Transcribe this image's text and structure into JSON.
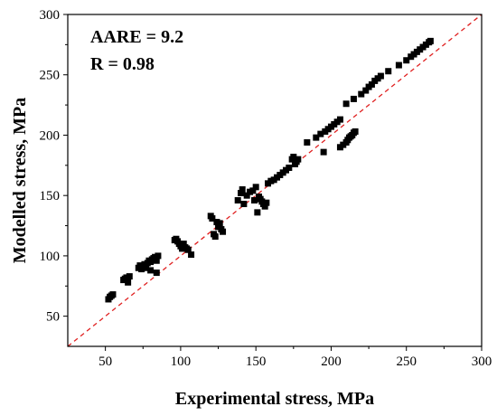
{
  "chart_data": {
    "type": "scatter",
    "xlabel": "Experimental stress, MPa",
    "ylabel": "Modelled  stress, MPa",
    "xlim": [
      25,
      300
    ],
    "ylim": [
      25,
      300
    ],
    "xticks": [
      50,
      100,
      150,
      200,
      250,
      300
    ],
    "yticks": [
      50,
      100,
      150,
      200,
      250,
      300
    ],
    "grid": false,
    "annotations": [
      "AARE = 9.2",
      "R = 0.98"
    ],
    "reference_line": {
      "style": "dashed",
      "color": "#e02020",
      "from": [
        25,
        25
      ],
      "to": [
        300,
        300
      ]
    },
    "marker": {
      "shape": "square",
      "color": "#000000"
    },
    "points": [
      [
        52,
        64
      ],
      [
        53,
        66
      ],
      [
        54,
        67
      ],
      [
        55,
        68
      ],
      [
        62,
        80
      ],
      [
        63,
        81
      ],
      [
        64,
        82
      ],
      [
        65,
        78
      ],
      [
        66,
        83
      ],
      [
        72,
        90
      ],
      [
        73,
        92
      ],
      [
        74,
        89
      ],
      [
        75,
        91
      ],
      [
        76,
        93
      ],
      [
        77,
        90
      ],
      [
        78,
        94
      ],
      [
        79,
        96
      ],
      [
        80,
        95
      ],
      [
        80,
        88
      ],
      [
        81,
        97
      ],
      [
        82,
        98
      ],
      [
        83,
        99
      ],
      [
        84,
        96
      ],
      [
        84,
        86
      ],
      [
        85,
        100
      ],
      [
        96,
        113
      ],
      [
        97,
        114
      ],
      [
        98,
        112
      ],
      [
        99,
        110
      ],
      [
        100,
        108
      ],
      [
        101,
        106
      ],
      [
        102,
        110
      ],
      [
        103,
        107
      ],
      [
        104,
        106
      ],
      [
        105,
        105
      ],
      [
        107,
        101
      ],
      [
        120,
        133
      ],
      [
        121,
        131
      ],
      [
        122,
        118
      ],
      [
        123,
        116
      ],
      [
        124,
        128
      ],
      [
        125,
        124
      ],
      [
        126,
        127
      ],
      [
        127,
        122
      ],
      [
        128,
        120
      ],
      [
        138,
        146
      ],
      [
        140,
        152
      ],
      [
        141,
        155
      ],
      [
        142,
        143
      ],
      [
        144,
        150
      ],
      [
        146,
        153
      ],
      [
        148,
        154
      ],
      [
        149,
        146
      ],
      [
        150,
        157
      ],
      [
        151,
        136
      ],
      [
        152,
        149
      ],
      [
        153,
        147
      ],
      [
        154,
        145
      ],
      [
        155,
        143
      ],
      [
        156,
        141
      ],
      [
        157,
        144
      ],
      [
        158,
        160
      ],
      [
        160,
        162
      ],
      [
        162,
        163
      ],
      [
        164,
        165
      ],
      [
        166,
        167
      ],
      [
        168,
        169
      ],
      [
        170,
        171
      ],
      [
        172,
        173
      ],
      [
        174,
        180
      ],
      [
        175,
        182
      ],
      [
        176,
        176
      ],
      [
        177,
        178
      ],
      [
        178,
        180
      ],
      [
        184,
        194
      ],
      [
        190,
        198
      ],
      [
        193,
        201
      ],
      [
        195,
        186
      ],
      [
        196,
        203
      ],
      [
        198,
        205
      ],
      [
        200,
        207
      ],
      [
        202,
        209
      ],
      [
        204,
        211
      ],
      [
        206,
        213
      ],
      [
        206,
        190
      ],
      [
        208,
        192
      ],
      [
        210,
        194
      ],
      [
        211,
        196
      ],
      [
        212,
        198
      ],
      [
        213,
        199
      ],
      [
        214,
        200
      ],
      [
        215,
        202
      ],
      [
        216,
        203
      ],
      [
        210,
        226
      ],
      [
        215,
        230
      ],
      [
        220,
        234
      ],
      [
        223,
        237
      ],
      [
        225,
        240
      ],
      [
        227,
        242
      ],
      [
        229,
        245
      ],
      [
        231,
        247
      ],
      [
        233,
        249
      ],
      [
        238,
        253
      ],
      [
        245,
        258
      ],
      [
        250,
        262
      ],
      [
        253,
        265
      ],
      [
        255,
        267
      ],
      [
        257,
        269
      ],
      [
        259,
        271
      ],
      [
        261,
        273
      ],
      [
        263,
        275
      ],
      [
        265,
        277
      ],
      [
        266,
        278
      ]
    ]
  }
}
